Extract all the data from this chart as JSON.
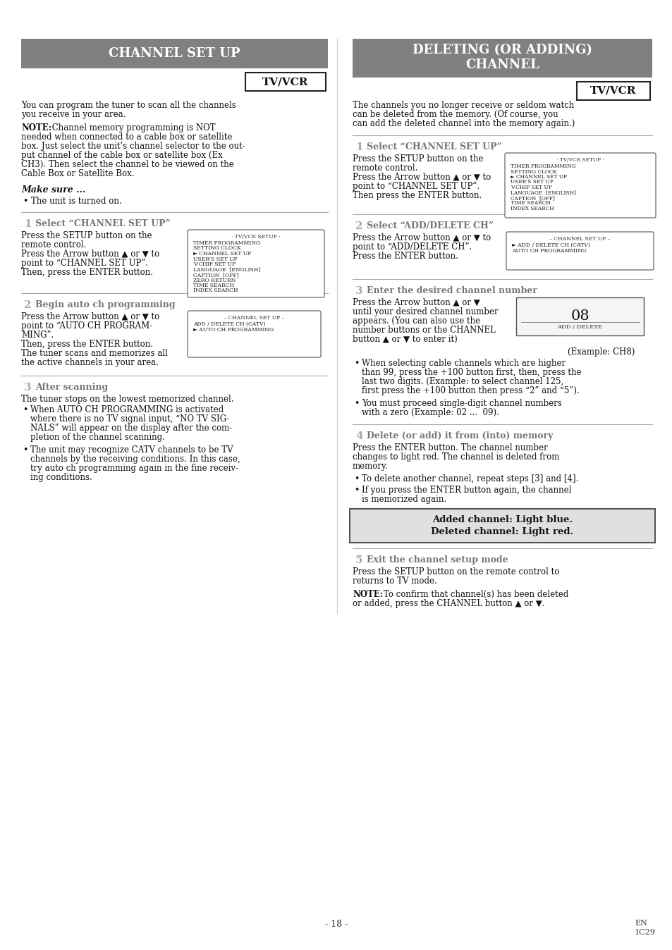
{
  "page_bg": "#ffffff",
  "header_bg": "#808080",
  "header_text_color": "#ffffff",
  "body_text_color": "#111111",
  "left_header": "CHANNEL SET UP",
  "right_header_line1": "DELETING (OR ADDING)",
  "right_header_line2": "CHANNEL",
  "tvvcr_label": "TV/VCR",
  "page_number": "- 18 -",
  "step1_left_box_items": [
    "· TV/VCR SETUP ·",
    "TIMER PROGRAMMING",
    "SETTING CLOCK",
    "► CHANNEL SET UP",
    "USER’S SET UP",
    "V-CHIP SET UP",
    "LANGUAGE  [ENGLISH]",
    "CAPTION  [OFF]",
    "ZERO RETURN",
    "TIME SEARCH",
    "INDEX SEARCH"
  ],
  "step2_left_box_items": [
    "– CHANNEL SET UP –",
    "ADD / DELETE CH (CATV)",
    "► AUTO CH PROGRAMMING"
  ],
  "step1_right_box_items": [
    "· TV/VCR SETUP ·",
    "TIMER PROGRAMMING",
    "SETTING CLOCK",
    "► CHANNEL SET UP",
    "USER’S SET UP",
    "V-CHIP SET UP",
    "LANGUAGE  [ENGLISH]",
    "CAPTION  [OFF]",
    "TIME SEARCH",
    "INDEX SEARCH"
  ],
  "step2_right_box_items": [
    "– CHANNEL SET UP –",
    "► ADD / DELETE CH (CATV)",
    "AUTO CH PROGRAMMING"
  ]
}
